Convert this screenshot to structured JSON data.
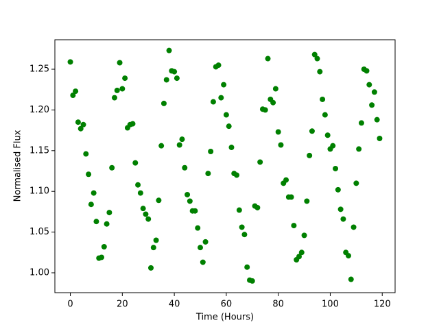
{
  "chart_data": {
    "type": "scatter",
    "xlabel": "Time (Hours)",
    "ylabel": "Normalised Flux",
    "color": "#008000",
    "x": [
      0,
      1,
      2,
      3,
      4,
      5,
      6,
      7,
      8,
      9,
      10,
      11,
      12,
      13,
      14,
      15,
      16,
      17,
      18,
      19,
      20,
      21,
      22,
      23,
      24,
      25,
      26,
      27,
      28,
      29,
      30,
      31,
      32,
      33,
      34,
      35,
      36,
      37,
      38,
      39,
      40,
      41,
      42,
      43,
      44,
      45,
      46,
      47,
      48,
      49,
      50,
      51,
      52,
      53,
      54,
      55,
      56,
      57,
      58,
      59,
      60,
      61,
      62,
      63,
      64,
      65,
      66,
      67,
      68,
      69,
      70,
      71,
      72,
      73,
      74,
      75,
      76,
      77,
      78,
      79,
      80,
      81,
      82,
      83,
      84,
      85,
      86,
      87,
      88,
      89,
      90,
      91,
      92,
      93,
      94,
      95,
      96,
      97,
      98,
      99,
      100,
      101,
      102,
      103,
      104,
      105,
      106,
      107,
      108,
      109,
      110,
      111,
      112,
      113,
      114,
      115,
      116,
      117,
      118,
      119
    ],
    "values": [
      1.259,
      1.218,
      1.223,
      1.185,
      1.177,
      1.182,
      1.146,
      1.121,
      1.084,
      1.098,
      1.063,
      1.018,
      1.019,
      1.032,
      1.06,
      1.074,
      1.129,
      1.215,
      1.224,
      1.258,
      1.226,
      1.239,
      1.178,
      1.182,
      1.183,
      1.135,
      1.108,
      1.098,
      1.079,
      1.072,
      1.066,
      1.006,
      1.031,
      1.04,
      1.089,
      1.156,
      1.208,
      1.237,
      1.273,
      1.248,
      1.247,
      1.239,
      1.157,
      1.164,
      1.129,
      1.096,
      1.088,
      1.076,
      1.076,
      1.055,
      1.031,
      1.013,
      1.038,
      1.122,
      1.149,
      1.21,
      1.253,
      1.255,
      1.215,
      1.231,
      1.194,
      1.18,
      1.154,
      1.122,
      1.12,
      1.077,
      1.056,
      1.047,
      1.007,
      0.991,
      0.99,
      1.082,
      1.08,
      1.136,
      1.201,
      1.2,
      1.263,
      1.213,
      1.209,
      1.226,
      1.173,
      1.157,
      1.11,
      1.114,
      1.093,
      1.093,
      1.058,
      1.016,
      1.02,
      1.025,
      1.046,
      1.088,
      1.144,
      1.174,
      1.268,
      1.263,
      1.247,
      1.213,
      1.194,
      1.169,
      1.152,
      1.156,
      1.128,
      1.102,
      1.078,
      1.066,
      1.025,
      1.021,
      0.992,
      1.056,
      1.11,
      1.152,
      1.184,
      1.25,
      1.248,
      1.231,
      1.206,
      1.222,
      1.188,
      1.165
    ],
    "xlim": [
      -5.95,
      124.95
    ],
    "xticks": [
      0,
      20,
      40,
      60,
      80,
      100,
      120
    ],
    "ylim": [
      0.9756,
      1.2862
    ],
    "yticks": [
      {
        "value": 1.0,
        "label": "1.00"
      },
      {
        "value": 1.05,
        "label": "1.05"
      },
      {
        "value": 1.1,
        "label": "1.10"
      },
      {
        "value": 1.15,
        "label": "1.15"
      },
      {
        "value": 1.2,
        "label": "1.20"
      },
      {
        "value": 1.25,
        "label": "1.25"
      }
    ]
  }
}
